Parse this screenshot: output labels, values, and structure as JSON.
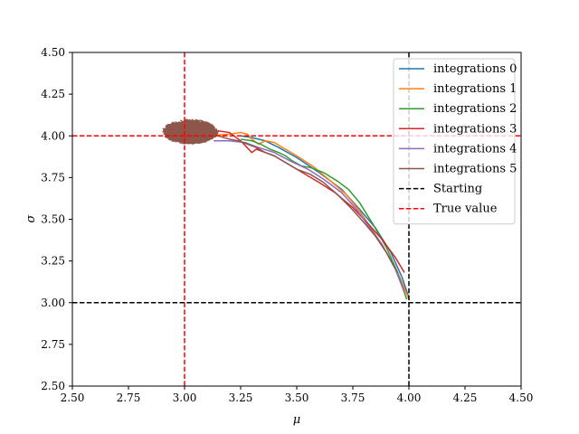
{
  "chart_data": {
    "type": "line",
    "title": "",
    "xlabel": "μ",
    "ylabel": "σ",
    "xlim": [
      2.5,
      4.5
    ],
    "ylim": [
      2.5,
      4.5
    ],
    "grid": false,
    "legend_position": "top-right",
    "xticks": [
      "2.50",
      "2.75",
      "3.00",
      "3.25",
      "3.50",
      "3.75",
      "4.00",
      "4.25",
      "4.50"
    ],
    "yticks": [
      "2.50",
      "2.75",
      "3.00",
      "3.25",
      "3.50",
      "3.75",
      "4.00",
      "4.25",
      "4.50"
    ],
    "series": [
      {
        "name": "integrations 0",
        "color": "#1f77b4",
        "x": [
          4.0,
          3.97,
          3.92,
          3.85,
          3.78,
          3.7,
          3.6,
          3.5,
          3.42,
          3.36,
          3.3,
          3.25
        ],
        "y": [
          3.03,
          3.15,
          3.3,
          3.45,
          3.56,
          3.68,
          3.78,
          3.87,
          3.93,
          3.97,
          3.99,
          4.0
        ]
      },
      {
        "name": "integrations 1",
        "color": "#ff7f0e",
        "x": [
          4.0,
          3.96,
          3.9,
          3.84,
          3.78,
          3.72,
          3.65,
          3.57,
          3.5,
          3.45,
          3.4,
          3.36,
          3.33,
          3.3,
          3.28,
          3.25,
          3.2,
          3.1
        ],
        "y": [
          3.02,
          3.15,
          3.3,
          3.43,
          3.55,
          3.65,
          3.73,
          3.82,
          3.88,
          3.92,
          3.96,
          3.97,
          3.95,
          3.98,
          4.01,
          4.02,
          4.01,
          4.0
        ]
      },
      {
        "name": "integrations 2",
        "color": "#2ca02c",
        "x": [
          3.99,
          3.95,
          3.9,
          3.84,
          3.78,
          3.73,
          3.68,
          3.62,
          3.56,
          3.52,
          3.48,
          3.45,
          3.42,
          3.38,
          3.34,
          3.3,
          3.25
        ],
        "y": [
          3.02,
          3.18,
          3.33,
          3.47,
          3.6,
          3.68,
          3.73,
          3.78,
          3.81,
          3.82,
          3.85,
          3.88,
          3.9,
          3.92,
          3.95,
          3.97,
          3.98
        ]
      },
      {
        "name": "integrations 3",
        "color": "#d62728",
        "x": [
          3.98,
          3.94,
          3.88,
          3.82,
          3.75,
          3.67,
          3.6,
          3.55,
          3.5,
          3.45,
          3.4,
          3.36,
          3.32,
          3.3,
          3.25,
          3.2,
          3.15,
          3.1
        ],
        "y": [
          3.18,
          3.27,
          3.38,
          3.47,
          3.57,
          3.66,
          3.72,
          3.76,
          3.8,
          3.84,
          3.88,
          3.9,
          3.92,
          3.9,
          3.97,
          4.02,
          4.03,
          4.0
        ]
      },
      {
        "name": "integrations 4",
        "color": "#9467bd",
        "x": [
          3.98,
          3.94,
          3.88,
          3.82,
          3.76,
          3.7,
          3.62,
          3.55,
          3.47,
          3.4,
          3.33,
          3.27,
          3.2,
          3.13
        ],
        "y": [
          3.06,
          3.2,
          3.35,
          3.46,
          3.57,
          3.66,
          3.74,
          3.8,
          3.85,
          3.9,
          3.93,
          3.96,
          3.97,
          3.97
        ]
      },
      {
        "name": "integrations 5",
        "color": "#8c564b",
        "x": [
          3.95,
          3.9,
          3.85,
          3.8,
          3.74,
          3.68,
          3.62,
          3.56,
          3.5,
          3.45,
          3.4,
          3.36,
          3.32,
          3.28,
          3.24,
          3.2,
          3.15
        ],
        "y": [
          3.18,
          3.3,
          3.4,
          3.48,
          3.57,
          3.65,
          3.72,
          3.77,
          3.8,
          3.84,
          3.88,
          3.9,
          3.93,
          3.95,
          3.97,
          3.98,
          4.0
        ]
      },
      {
        "name": "Starting",
        "color": "#000000",
        "dashed": true,
        "x_value": 4.0,
        "y_value": 3.0
      },
      {
        "name": "True value",
        "color": "#ff0000",
        "dashed": true,
        "x_value": 3.0,
        "y_value": 4.0
      }
    ],
    "cluster": {
      "series": "integrations 5",
      "center": [
        3.0,
        4.01
      ],
      "x_extent": [
        2.9,
        3.15
      ],
      "y_extent": [
        3.95,
        4.1
      ]
    }
  }
}
